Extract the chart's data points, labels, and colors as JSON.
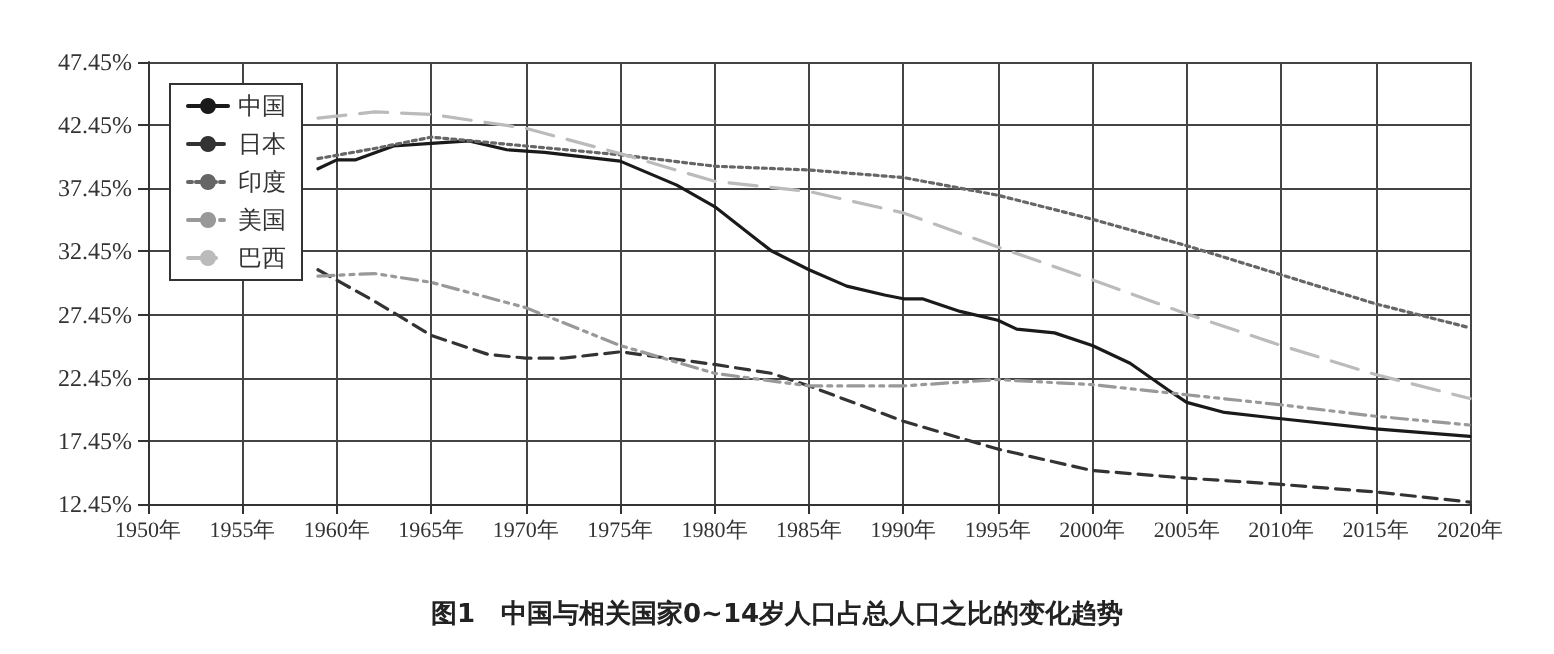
{
  "chart_data": {
    "type": "line",
    "title": "图1　中国与相关国家0~14岁人口占总人口之比的变化趋势",
    "xlim": [
      1950,
      2020
    ],
    "xticks": [
      {
        "value": 1950,
        "label": "1950年"
      },
      {
        "value": 1955,
        "label": "1955年"
      },
      {
        "value": 1960,
        "label": "1960年"
      },
      {
        "value": 1965,
        "label": "1965年"
      },
      {
        "value": 1970,
        "label": "1970年"
      },
      {
        "value": 1975,
        "label": "1975年"
      },
      {
        "value": 1980,
        "label": "1980年"
      },
      {
        "value": 1985,
        "label": "1985年"
      },
      {
        "value": 1990,
        "label": "1990年"
      },
      {
        "value": 1995,
        "label": "1995年"
      },
      {
        "value": 2000,
        "label": "2000年"
      },
      {
        "value": 2005,
        "label": "2005年"
      },
      {
        "value": 2010,
        "label": "2010年"
      },
      {
        "value": 2015,
        "label": "2015年"
      },
      {
        "value": 2020,
        "label": "2020年"
      }
    ],
    "ylim": [
      12.45,
      47.45
    ],
    "yticks": [
      {
        "value": 12.45,
        "label": "12.45%"
      },
      {
        "value": 17.45,
        "label": "17.45%"
      },
      {
        "value": 22.45,
        "label": "22.45%"
      },
      {
        "value": 27.45,
        "label": "27.45%"
      },
      {
        "value": 32.45,
        "label": "32.45%"
      },
      {
        "value": 37.45,
        "label": "37.45%"
      },
      {
        "value": 42.45,
        "label": "42.45%"
      },
      {
        "value": 47.45,
        "label": "47.45%"
      }
    ],
    "grid": true,
    "legend": "top left",
    "marker": "none",
    "series": [
      {
        "name": "中国",
        "color": "#1a1a1a",
        "line_style": "solid",
        "x": [
          1959,
          1960,
          1961,
          1963,
          1965,
          1967,
          1969,
          1971,
          1975,
          1978,
          1980,
          1983,
          1985,
          1987,
          1989,
          1990,
          1991,
          1993,
          1995,
          1996,
          1998,
          2000,
          2002,
          2004,
          2005,
          2007,
          2010,
          2015,
          2020
        ],
        "values": [
          39.0,
          39.7,
          39.7,
          40.8,
          41.0,
          41.2,
          40.5,
          40.3,
          39.6,
          37.7,
          36.0,
          32.5,
          31.0,
          29.7,
          29.0,
          28.7,
          28.7,
          27.7,
          27.0,
          26.3,
          26.0,
          25.0,
          23.6,
          21.5,
          20.5,
          19.7,
          19.2,
          18.4,
          17.8
        ]
      },
      {
        "name": "日本",
        "color": "#333333",
        "line_style": "dashed",
        "x": [
          1959,
          1962,
          1965,
          1968,
          1970,
          1972,
          1975,
          1980,
          1983,
          1985,
          1990,
          1995,
          2000,
          2005,
          2010,
          2015,
          2020
        ],
        "values": [
          31.0,
          28.5,
          25.8,
          24.3,
          24.0,
          24.0,
          24.5,
          23.5,
          22.8,
          21.8,
          19.0,
          16.8,
          15.1,
          14.5,
          14.0,
          13.4,
          12.6
        ]
      },
      {
        "name": "印度",
        "color": "#666666",
        "line_style": "dotted",
        "x": [
          1959,
          1962,
          1965,
          1970,
          1975,
          1980,
          1985,
          1990,
          1995,
          2000,
          2005,
          2010,
          2015,
          2020
        ],
        "values": [
          39.8,
          40.6,
          41.5,
          40.8,
          40.1,
          39.2,
          38.9,
          38.3,
          36.9,
          35.0,
          32.9,
          30.6,
          28.3,
          26.4
        ]
      },
      {
        "name": "美国",
        "color": "#999999",
        "line_style": "dashdot",
        "x": [
          1959,
          1962,
          1965,
          1970,
          1975,
          1980,
          1985,
          1990,
          1995,
          2000,
          2005,
          2010,
          2015,
          2020
        ],
        "values": [
          30.5,
          30.7,
          30.0,
          28.0,
          25.0,
          22.8,
          21.8,
          21.8,
          22.3,
          21.9,
          21.1,
          20.3,
          19.4,
          18.7
        ]
      },
      {
        "name": "巴西",
        "color": "#bbbbbb",
        "line_style": "longdash",
        "x": [
          1959,
          1962,
          1965,
          1970,
          1975,
          1980,
          1985,
          1990,
          1995,
          2000,
          2005,
          2010,
          2015,
          2020
        ],
        "values": [
          43.0,
          43.5,
          43.3,
          42.2,
          40.2,
          38.0,
          37.2,
          35.5,
          32.8,
          30.2,
          27.5,
          25.0,
          22.7,
          20.8
        ]
      }
    ]
  }
}
